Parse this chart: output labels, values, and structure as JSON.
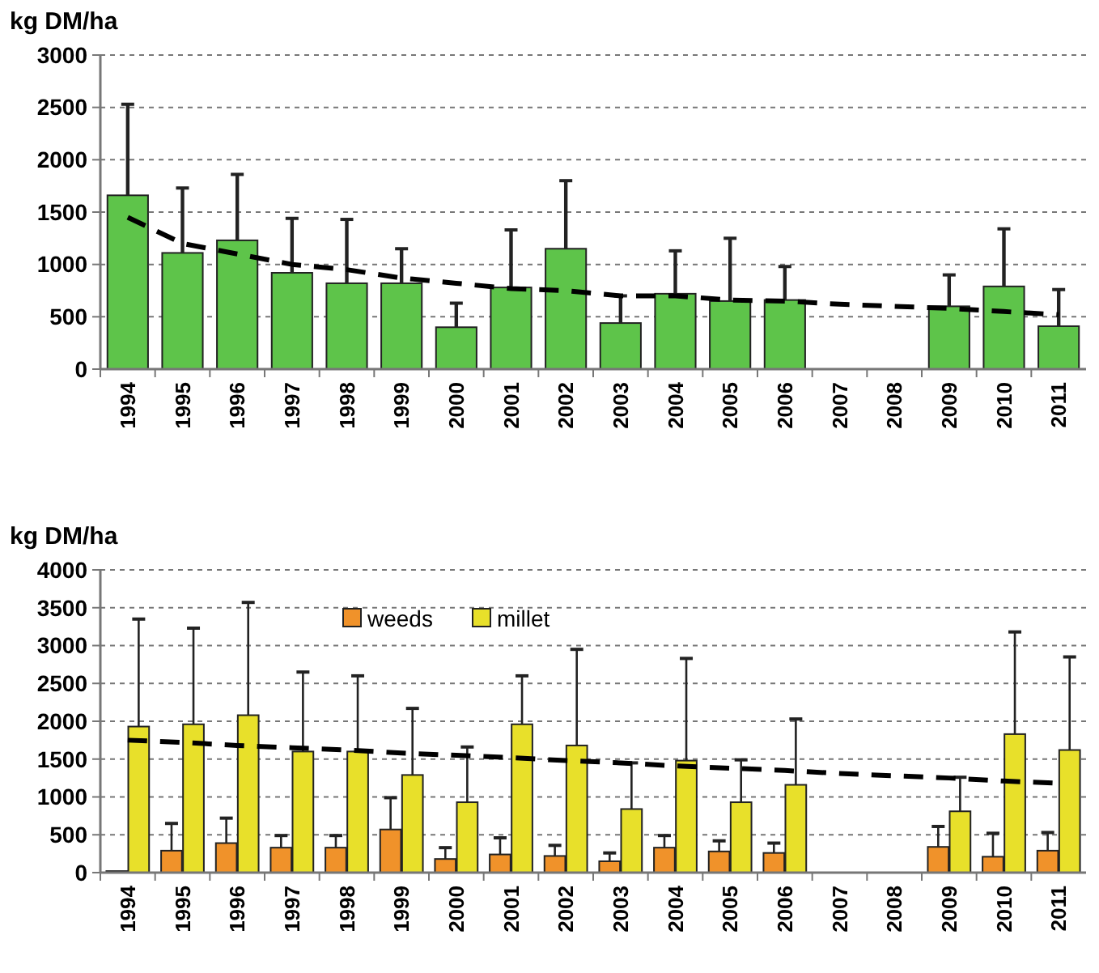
{
  "chart_data": [
    {
      "type": "bar",
      "ylabel": "kg DM/ha",
      "categories": [
        "1994",
        "1995",
        "1996",
        "1997",
        "1998",
        "1999",
        "2000",
        "2001",
        "2002",
        "2003",
        "2004",
        "2005",
        "2006",
        "2007",
        "2008",
        "2009",
        "2010",
        "2011"
      ],
      "ylim": [
        0,
        3000
      ],
      "yticks": [
        0,
        500,
        1000,
        1500,
        2000,
        2500,
        3000
      ],
      "grid": "y",
      "legend": false,
      "series": [
        {
          "color": "#5ec44a",
          "values": [
            1660,
            1110,
            1230,
            920,
            820,
            820,
            400,
            780,
            1150,
            440,
            720,
            650,
            660,
            null,
            null,
            600,
            790,
            410
          ],
          "errors": [
            [
              1660,
              2530
            ],
            [
              1110,
              1730
            ],
            [
              1230,
              1860
            ],
            [
              920,
              1440
            ],
            [
              820,
              1430
            ],
            [
              820,
              1150
            ],
            [
              400,
              630
            ],
            [
              780,
              1330
            ],
            [
              1150,
              1800
            ],
            [
              440,
              700
            ],
            [
              720,
              1130
            ],
            [
              650,
              1250
            ],
            [
              660,
              980
            ],
            null,
            null,
            [
              600,
              900
            ],
            [
              790,
              1340
            ],
            [
              410,
              760
            ]
          ]
        },
        {
          "type": "line",
          "color": "#000000",
          "line_style": "dashed",
          "values": [
            1450,
            1200,
            1100,
            1000,
            950,
            870,
            820,
            770,
            750,
            700,
            700,
            660,
            650,
            620,
            600,
            580,
            550,
            520
          ]
        }
      ]
    },
    {
      "type": "bar",
      "ylabel": "kg DM/ha",
      "categories": [
        "1994",
        "1995",
        "1996",
        "1997",
        "1998",
        "1999",
        "2000",
        "2001",
        "2002",
        "2003",
        "2004",
        "2005",
        "2006",
        "2007",
        "2008",
        "2009",
        "2010",
        "2011"
      ],
      "ylim": [
        0,
        4000
      ],
      "yticks": [
        0,
        500,
        1000,
        1500,
        2000,
        2500,
        3000,
        3500,
        4000
      ],
      "grid": "y",
      "legend": "top",
      "series": [
        {
          "name": "weeds",
          "color": "#f0922a",
          "values": [
            20,
            290,
            390,
            330,
            330,
            570,
            180,
            240,
            220,
            150,
            330,
            280,
            260,
            null,
            null,
            340,
            210,
            290
          ],
          "errors": [
            null,
            [
              290,
              650
            ],
            [
              390,
              720
            ],
            [
              330,
              490
            ],
            [
              330,
              490
            ],
            [
              570,
              990
            ],
            [
              180,
              330
            ],
            [
              240,
              460
            ],
            [
              220,
              360
            ],
            [
              150,
              260
            ],
            [
              330,
              490
            ],
            [
              280,
              420
            ],
            [
              260,
              390
            ],
            null,
            null,
            [
              340,
              610
            ],
            [
              210,
              520
            ],
            [
              290,
              530
            ]
          ]
        },
        {
          "name": "millet",
          "color": "#e8e02a",
          "values": [
            1930,
            1960,
            2080,
            1600,
            1600,
            1290,
            930,
            1960,
            1680,
            840,
            1480,
            930,
            1160,
            null,
            null,
            810,
            1830,
            1620
          ],
          "errors": [
            [
              1930,
              3350
            ],
            [
              1960,
              3230
            ],
            [
              2080,
              3570
            ],
            [
              1600,
              2650
            ],
            [
              1600,
              2600
            ],
            [
              1290,
              2170
            ],
            [
              930,
              1660
            ],
            [
              1960,
              2600
            ],
            [
              1680,
              2950
            ],
            [
              840,
              1450
            ],
            [
              1480,
              2830
            ],
            [
              930,
              1490
            ],
            [
              1160,
              2030
            ],
            null,
            null,
            [
              810,
              1260
            ],
            [
              1830,
              3180
            ],
            [
              1620,
              2850
            ]
          ]
        },
        {
          "type": "line",
          "color": "#000000",
          "line_style": "dashed",
          "values": [
            1750,
            1720,
            1680,
            1650,
            1620,
            1580,
            1550,
            1520,
            1480,
            1450,
            1410,
            1380,
            1350,
            1310,
            1280,
            1250,
            1210,
            1180
          ]
        }
      ]
    }
  ]
}
